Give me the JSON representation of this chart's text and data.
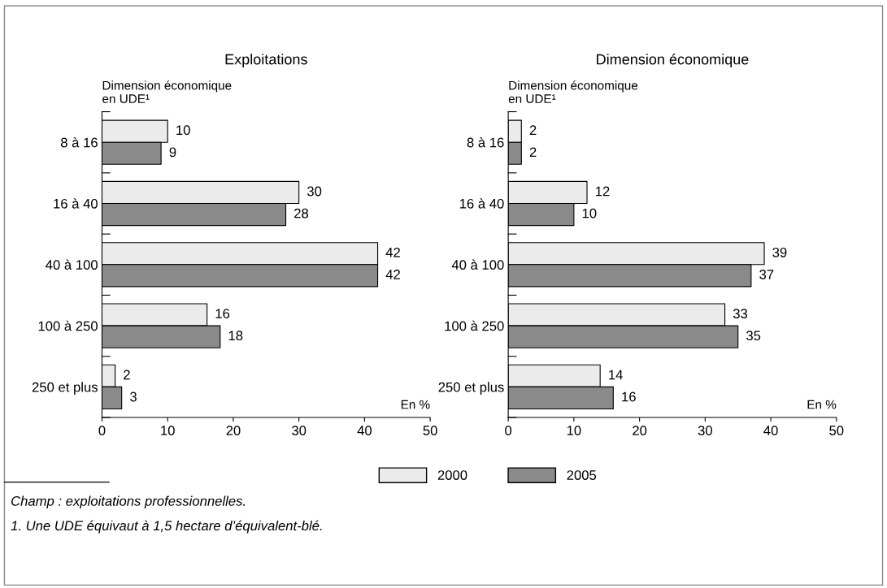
{
  "chart_data": [
    {
      "type": "bar",
      "orientation": "horizontal",
      "title": "Exploitations",
      "ylabel": "Dimension économique\nen UDE¹",
      "xlabel": "En %",
      "categories": [
        "8 à 16",
        "16 à 40",
        "40 à 100",
        "100 à 250",
        "250 et plus"
      ],
      "series": [
        {
          "name": "2000",
          "color": "#ebebeb",
          "values": [
            10,
            30,
            42,
            16,
            2
          ]
        },
        {
          "name": "2005",
          "color": "#8a8a8a",
          "values": [
            9,
            28,
            42,
            18,
            3
          ]
        }
      ],
      "xlim": [
        0,
        50
      ],
      "xticks": [
        0,
        10,
        20,
        30,
        40,
        50
      ],
      "data_labels": true,
      "grid": false,
      "legend": "bottom",
      "annotations": [
        "Champ : exploitations professionnelles.",
        "1. Une UDE équivaut à 1,5 hectare d’équivalent-blé."
      ]
    },
    {
      "type": "bar",
      "orientation": "horizontal",
      "title": "Dimension économique",
      "ylabel": "Dimension économique\nen UDE¹",
      "xlabel": "En %",
      "categories": [
        "8 à 16",
        "16 à 40",
        "40 à 100",
        "100 à 250",
        "250 et plus"
      ],
      "series": [
        {
          "name": "2000",
          "color": "#ebebeb",
          "values": [
            2,
            12,
            39,
            33,
            14
          ]
        },
        {
          "name": "2005",
          "color": "#8a8a8a",
          "values": [
            2,
            10,
            37,
            35,
            16
          ]
        }
      ],
      "xlim": [
        0,
        50
      ],
      "xticks": [
        0,
        10,
        20,
        30,
        40,
        50
      ],
      "data_labels": true,
      "grid": false,
      "legend": "bottom"
    }
  ]
}
